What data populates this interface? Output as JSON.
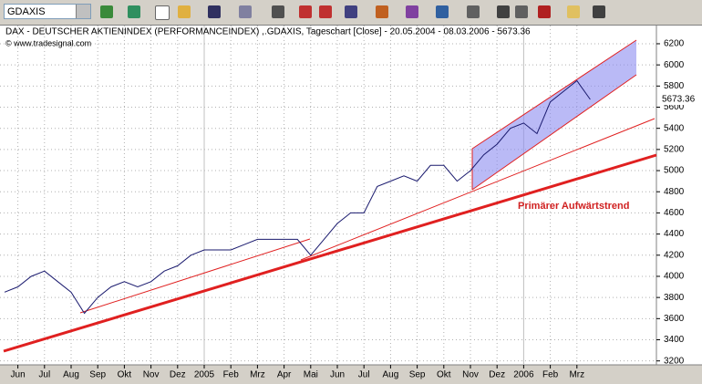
{
  "toolbar": {
    "symbol": "GDAXIS"
  },
  "chart_data": {
    "type": "line",
    "title": "DAX - DEUTSCHER AKTIENINDEX (PERFORMANCEINDEX) ,.GDAXIS, Tageschart [Close] - 20.05.2004 - 08.03.2006 - 5673.36",
    "subtitle": "© www.tradesignal.com",
    "annotation": "Primärer Aufwärtstrend",
    "categories": [
      null,
      "Jun",
      null,
      "Jul",
      null,
      "Aug",
      null,
      "Sep",
      null,
      "Okt",
      null,
      "Nov",
      null,
      "Dez",
      null,
      "2005",
      null,
      "Feb",
      null,
      "Mrz",
      null,
      "Apr",
      null,
      "Mai",
      null,
      "Jun",
      null,
      "Jul",
      null,
      "Aug",
      null,
      "Sep",
      null,
      "Okt",
      null,
      "Nov",
      null,
      "Dez",
      null,
      "2006",
      null,
      "Feb",
      null,
      "Mrz",
      null
    ],
    "series": [
      {
        "name": "DAX",
        "color": "#1a1a6e",
        "values": [
          3850,
          3900,
          4000,
          4050,
          3950,
          3850,
          3650,
          3800,
          3900,
          3950,
          3900,
          3950,
          4050,
          4100,
          4200,
          4250,
          4250,
          4250,
          4300,
          4350,
          4350,
          4350,
          4350,
          4200,
          4350,
          4500,
          4600,
          4600,
          4850,
          4900,
          4950,
          4900,
          5050,
          5050,
          4900,
          5000,
          5150,
          5250,
          5400,
          5450,
          5350,
          5650,
          5750,
          5850,
          5673.36
        ]
      }
    ],
    "ylim": [
      3180,
      6355
    ],
    "yticks": [
      3200,
      3400,
      3600,
      3800,
      4000,
      4200,
      4400,
      4600,
      4800,
      5000,
      5200,
      5400,
      5600,
      5800,
      6000,
      6200
    ],
    "grid": true
  }
}
